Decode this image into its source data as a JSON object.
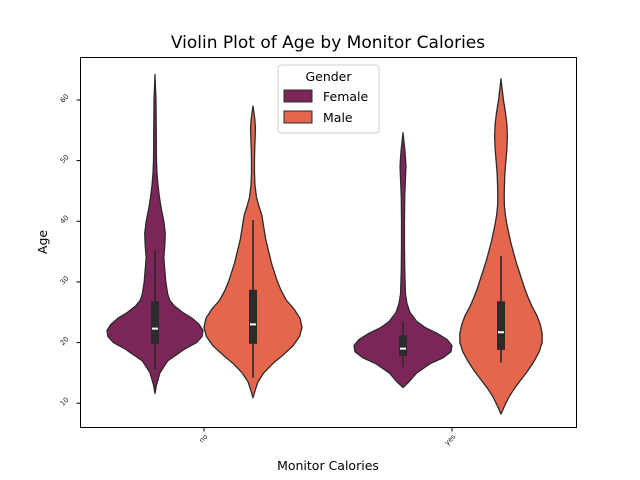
{
  "chart_data": {
    "type": "violin",
    "title": "Violin Plot of Age by Monitor Calories",
    "xlabel": "Monitor Calories",
    "ylabel": "Age",
    "categories": [
      "no",
      "yes"
    ],
    "yticks": [
      10,
      20,
      30,
      40,
      50,
      60
    ],
    "ylim": [
      6,
      67
    ],
    "grid": false,
    "legend": {
      "title": "Gender",
      "position": "top-center",
      "entries": [
        "Female",
        "Male"
      ]
    },
    "series": [
      {
        "name": "Female",
        "color": "#7b2559",
        "violins": [
          {
            "category": "no",
            "profile": [
              [
                11.6,
                0.0
              ],
              [
                13,
                0.03
              ],
              [
                15,
                0.1
              ],
              [
                17,
                0.26
              ],
              [
                19,
                0.62
              ],
              [
                20,
                0.85
              ],
              [
                21,
                0.96
              ],
              [
                22,
                0.98
              ],
              [
                23,
                0.9
              ],
              [
                24,
                0.76
              ],
              [
                25,
                0.56
              ],
              [
                26,
                0.4
              ],
              [
                27,
                0.3
              ],
              [
                28,
                0.26
              ],
              [
                30,
                0.22
              ],
              [
                32,
                0.2
              ],
              [
                34,
                0.18
              ],
              [
                36,
                0.2
              ],
              [
                38,
                0.21
              ],
              [
                40,
                0.18
              ],
              [
                42,
                0.13
              ],
              [
                44,
                0.09
              ],
              [
                46,
                0.06
              ],
              [
                48,
                0.04
              ],
              [
                50,
                0.03
              ],
              [
                55,
                0.025
              ],
              [
                60,
                0.02
              ],
              [
                64.2,
                0.0
              ]
            ],
            "q1": 19.8,
            "median": 22.3,
            "q3": 26.8,
            "whisker_low": 15.5,
            "whisker_high": 35.2
          },
          {
            "category": "yes",
            "profile": [
              [
                12.6,
                0.0
              ],
              [
                13.5,
                0.12
              ],
              [
                15,
                0.28
              ],
              [
                16.5,
                0.55
              ],
              [
                17.5,
                0.82
              ],
              [
                18.5,
                0.98
              ],
              [
                19.5,
                1.0
              ],
              [
                20.5,
                0.9
              ],
              [
                21.5,
                0.7
              ],
              [
                22.5,
                0.45
              ],
              [
                23.5,
                0.28
              ],
              [
                25,
                0.14
              ],
              [
                26.5,
                0.08
              ],
              [
                28,
                0.05
              ],
              [
                32,
                0.035
              ],
              [
                36,
                0.03
              ],
              [
                40,
                0.03
              ],
              [
                44,
                0.035
              ],
              [
                47,
                0.05
              ],
              [
                49,
                0.06
              ],
              [
                50.5,
                0.05
              ],
              [
                52,
                0.035
              ],
              [
                54.6,
                0.0
              ]
            ],
            "q1": 17.8,
            "median": 19.0,
            "q3": 21.2,
            "whisker_low": 16.0,
            "whisker_high": 23.5
          }
        ]
      },
      {
        "name": "Male",
        "color": "#e3664d",
        "violins": [
          {
            "category": "no",
            "profile": [
              [
                10.9,
                0.0
              ],
              [
                12,
                0.04
              ],
              [
                13.5,
                0.1
              ],
              [
                15,
                0.22
              ],
              [
                16.5,
                0.4
              ],
              [
                18,
                0.62
              ],
              [
                19.5,
                0.82
              ],
              [
                21,
                0.95
              ],
              [
                22.5,
                1.0
              ],
              [
                24,
                0.96
              ],
              [
                25.5,
                0.84
              ],
              [
                27,
                0.68
              ],
              [
                28.5,
                0.58
              ],
              [
                30,
                0.5
              ],
              [
                31.5,
                0.44
              ],
              [
                33,
                0.38
              ],
              [
                35,
                0.32
              ],
              [
                37,
                0.26
              ],
              [
                39,
                0.22
              ],
              [
                41,
                0.18
              ],
              [
                42.5,
                0.12
              ],
              [
                44,
                0.07
              ],
              [
                46,
                0.04
              ],
              [
                48,
                0.03
              ],
              [
                50,
                0.03
              ],
              [
                52,
                0.035
              ],
              [
                54,
                0.045
              ],
              [
                55.5,
                0.05
              ],
              [
                57,
                0.035
              ],
              [
                59,
                0.0
              ]
            ],
            "q1": 19.8,
            "median": 23.0,
            "q3": 28.7,
            "whisker_low": 14.2,
            "whisker_high": 40.2
          },
          {
            "category": "yes",
            "profile": [
              [
                8.2,
                0.0
              ],
              [
                9.5,
                0.07
              ],
              [
                11,
                0.16
              ],
              [
                12.5,
                0.28
              ],
              [
                14,
                0.42
              ],
              [
                15.5,
                0.56
              ],
              [
                17,
                0.68
              ],
              [
                18.5,
                0.78
              ],
              [
                20,
                0.84
              ],
              [
                21.5,
                0.84
              ],
              [
                23,
                0.8
              ],
              [
                24.5,
                0.73
              ],
              [
                26,
                0.63
              ],
              [
                27.5,
                0.55
              ],
              [
                29,
                0.48
              ],
              [
                30.5,
                0.42
              ],
              [
                32,
                0.36
              ],
              [
                33.5,
                0.3
              ],
              [
                35,
                0.25
              ],
              [
                36.5,
                0.2
              ],
              [
                38,
                0.16
              ],
              [
                39.5,
                0.12
              ],
              [
                41,
                0.09
              ],
              [
                42.5,
                0.07
              ],
              [
                44,
                0.065
              ],
              [
                46,
                0.07
              ],
              [
                48,
                0.08
              ],
              [
                50,
                0.1
              ],
              [
                52,
                0.12
              ],
              [
                54,
                0.13
              ],
              [
                56,
                0.12
              ],
              [
                58,
                0.09
              ],
              [
                60,
                0.05
              ],
              [
                62,
                0.02
              ],
              [
                63.5,
                0.0
              ]
            ],
            "q1": 18.8,
            "median": 21.7,
            "q3": 26.8,
            "whisker_low": 16.7,
            "whisker_high": 34.3
          }
        ]
      }
    ]
  }
}
